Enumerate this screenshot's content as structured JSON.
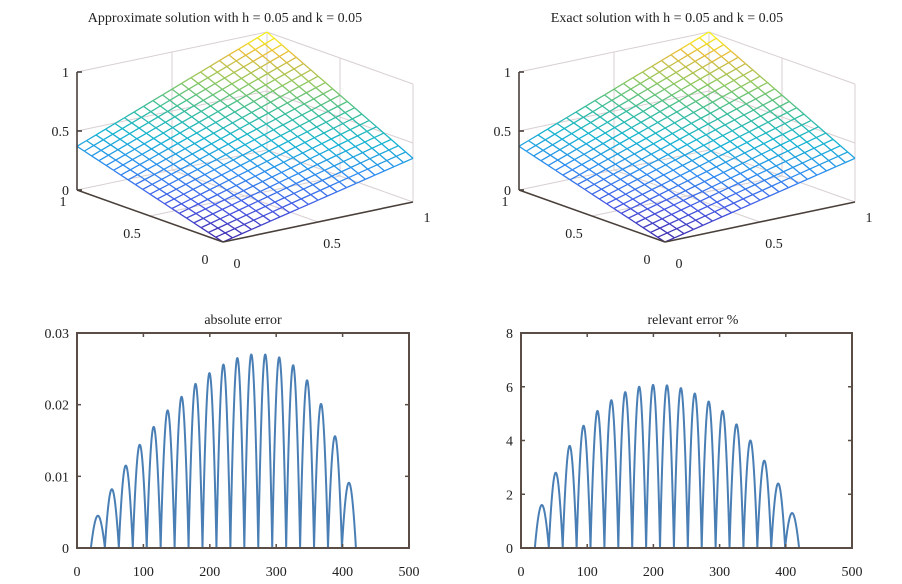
{
  "chart_data": [
    {
      "type": "surface",
      "title": "Approximate solution with h = 0.05 and k = 0.05",
      "x_ticks": [
        "0",
        "0.5",
        "1"
      ],
      "y_ticks": [
        "0",
        "0.5",
        "1"
      ],
      "z_ticks": [
        "0",
        "0.5",
        "1"
      ],
      "xlim": [
        0,
        1
      ],
      "ylim": [
        0,
        1
      ],
      "zlim": [
        0,
        1
      ],
      "grid_step": 0.05,
      "corner_values": {
        "x0y0": 0.0,
        "x1y0": 0.37,
        "x0y1": 0.37,
        "x1y1": 1.0
      },
      "colormap": "parula"
    },
    {
      "type": "surface",
      "title": "Exact solution with h = 0.05 and k = 0.05",
      "x_ticks": [
        "0",
        "0.5",
        "1"
      ],
      "y_ticks": [
        "0",
        "0.5",
        "1"
      ],
      "z_ticks": [
        "0",
        "0.5",
        "1"
      ],
      "xlim": [
        0,
        1
      ],
      "ylim": [
        0,
        1
      ],
      "zlim": [
        0,
        1
      ],
      "grid_step": 0.05,
      "corner_values": {
        "x0y0": 0.0,
        "x1y0": 0.37,
        "x0y1": 0.37,
        "x1y1": 1.0
      },
      "colormap": "parula"
    },
    {
      "type": "line",
      "title": "absolute error",
      "xlabel": "",
      "ylabel": "",
      "xlim": [
        0,
        500
      ],
      "ylim": [
        0,
        0.03
      ],
      "x_ticks": [
        "0",
        "100",
        "200",
        "300",
        "400",
        "500"
      ],
      "y_ticks": [
        "0",
        "0.01",
        "0.02",
        "0.03"
      ],
      "n_points": 441,
      "lobe_period": 21,
      "lobe_start": 21,
      "lobe_peaks": [
        0.0045,
        0.0082,
        0.0115,
        0.0144,
        0.0169,
        0.0192,
        0.0211,
        0.0229,
        0.0244,
        0.0256,
        0.0265,
        0.027,
        0.027,
        0.0266,
        0.0255,
        0.0234,
        0.0201,
        0.0156,
        0.0091
      ],
      "color": "#4a7fb5"
    },
    {
      "type": "line",
      "title": "relevant error %",
      "xlabel": "",
      "ylabel": "",
      "xlim": [
        0,
        500
      ],
      "ylim": [
        0,
        8
      ],
      "x_ticks": [
        "0",
        "100",
        "200",
        "300",
        "400",
        "500"
      ],
      "y_ticks": [
        "0",
        "2",
        "4",
        "6",
        "8"
      ],
      "n_points": 441,
      "lobe_period": 21,
      "lobe_start": 21,
      "lobe_peaks": [
        1.6,
        2.8,
        3.8,
        4.55,
        5.1,
        5.5,
        5.8,
        6.0,
        6.07,
        6.05,
        5.95,
        5.75,
        5.45,
        5.1,
        4.6,
        4.0,
        3.25,
        2.4,
        1.3
      ],
      "color": "#4a7fb5"
    }
  ]
}
